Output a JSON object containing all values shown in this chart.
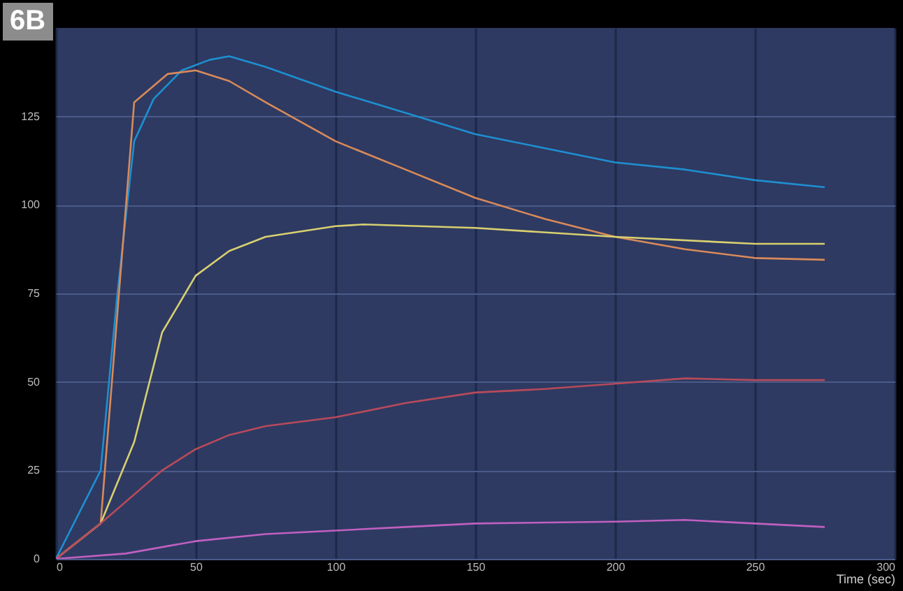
{
  "chart_data": {
    "type": "line",
    "xlabel": "Time (sec)",
    "annotations": [
      "6B"
    ],
    "xlim": [
      0,
      300
    ],
    "xticks": [
      0,
      50,
      100,
      150,
      200,
      250,
      300
    ],
    "ylim": [
      0,
      150
    ],
    "yticks": [
      0,
      25,
      50,
      75,
      100,
      125
    ],
    "grid": true,
    "series": [
      {
        "color": "#1e8fd0",
        "x": [
          0,
          16,
          22,
          28,
          35,
          45,
          55,
          62,
          75,
          100,
          125,
          150,
          175,
          200,
          225,
          250,
          275
        ],
        "values": [
          0,
          25,
          75,
          118,
          130,
          138,
          141,
          142,
          139,
          132,
          126,
          120,
          116,
          112,
          110,
          107,
          105
        ]
      },
      {
        "color": "#d98a5a",
        "x": [
          0,
          16,
          28,
          40,
          50,
          62,
          75,
          100,
          125,
          150,
          175,
          200,
          225,
          250,
          275
        ],
        "values": [
          0,
          10,
          129,
          137,
          138,
          135,
          129,
          118,
          110,
          102,
          96,
          91,
          87.5,
          85,
          84.5
        ]
      },
      {
        "color": "#d8d070",
        "x": [
          0,
          16,
          28,
          38,
          50,
          62,
          75,
          100,
          110,
          150,
          200,
          250,
          275
        ],
        "values": [
          0,
          10,
          33,
          64,
          80,
          87,
          91,
          94,
          94.5,
          93.5,
          91,
          89,
          89
        ]
      },
      {
        "color": "#b84a5a",
        "x": [
          0,
          16,
          38,
          50,
          62,
          75,
          100,
          125,
          150,
          175,
          200,
          225,
          250,
          275
        ],
        "values": [
          0,
          10,
          25,
          31,
          35,
          37.5,
          40,
          44,
          47,
          48,
          49.5,
          51,
          50.5,
          50.5
        ]
      },
      {
        "color": "#c060c0",
        "x": [
          0,
          25,
          50,
          75,
          100,
          125,
          150,
          200,
          225,
          250,
          275
        ],
        "values": [
          0,
          1.5,
          5,
          7,
          8,
          9,
          10,
          10.5,
          11,
          10,
          9
        ]
      }
    ]
  }
}
